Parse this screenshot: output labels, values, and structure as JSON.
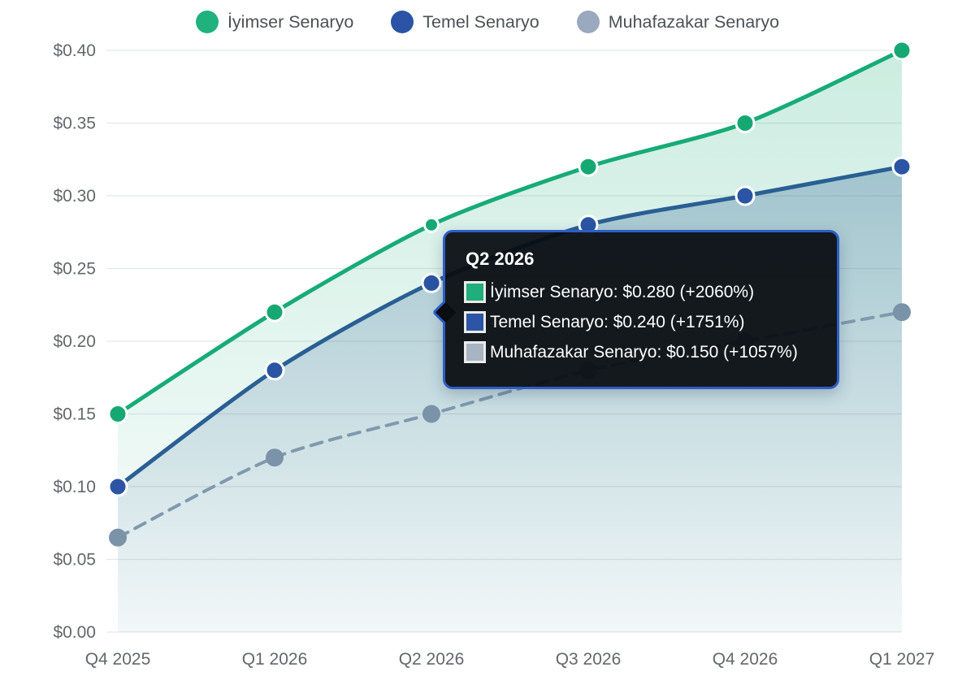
{
  "chart_data": {
    "type": "line",
    "title": "",
    "categories": [
      "Q4 2025",
      "Q1 2026",
      "Q2 2026",
      "Q3 2026",
      "Q4 2026",
      "Q1 2027"
    ],
    "y_tick_labels": [
      "$0.00",
      "$0.05",
      "$0.10",
      "$0.15",
      "$0.20",
      "$0.25",
      "$0.30",
      "$0.35",
      "$0.40"
    ],
    "ylim": [
      0,
      0.4
    ],
    "y_step": 0.05,
    "grid": "horizontal",
    "legend_position": "top",
    "series": [
      {
        "name": "İyimser Senaryo",
        "legend_color": "#1fb27e",
        "line_color": "#17ab77",
        "point_color": "#16a873",
        "line_style": "solid",
        "area_fill": "gradient",
        "values": [
          0.15,
          0.22,
          0.28,
          0.32,
          0.35,
          0.4
        ]
      },
      {
        "name": "Temel Senaryo",
        "legend_color": "#2b54a6",
        "line_color": "#2a5f94",
        "point_color": "#2b55a4",
        "line_style": "solid",
        "area_fill": "gradient",
        "values": [
          0.1,
          0.18,
          0.24,
          0.28,
          0.3,
          0.32
        ]
      },
      {
        "name": "Muhafazakar Senaryo",
        "legend_color": "#9aa9bd",
        "line_color": "#7f99ad",
        "point_color": "#7b93a8",
        "line_style": "dashed",
        "area_fill": "none",
        "values": [
          0.065,
          0.12,
          0.15,
          0.18,
          0.2,
          0.22
        ]
      }
    ]
  },
  "tooltip": {
    "title": "Q2 2026",
    "border_color": "#2e5ec6",
    "rows": [
      {
        "label": "İyimser Senaryo",
        "value": "$0.280",
        "change": "+2060%",
        "text": "İyimser Senaryo: $0.280 (+2060%)",
        "swatch_color": "#1fae7c"
      },
      {
        "label": "Temel Senaryo",
        "value": "$0.240",
        "change": "+1751%",
        "text": "Temel Senaryo: $0.240 (+1751%)",
        "swatch_color": "#2d55a5"
      },
      {
        "label": "Muhafazakar Senaryo",
        "value": "$0.150",
        "change": "+1057%",
        "text": "Muhafazakar Senaryo: $0.150 (+1057%)",
        "swatch_color": "#a9b4c2"
      }
    ]
  }
}
